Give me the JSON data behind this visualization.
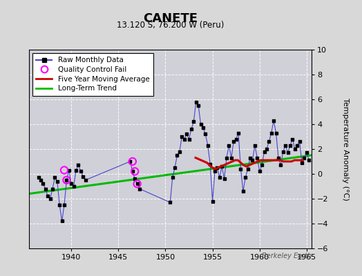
{
  "title": "CANETE",
  "subtitle": "13.120 S, 76.200 W (Peru)",
  "ylabel": "Temperature Anomaly (°C)",
  "watermark": "Berkeley Earth",
  "xlim": [
    1935.5,
    1965.5
  ],
  "ylim": [
    -6,
    10
  ],
  "yticks": [
    -6,
    -4,
    -2,
    0,
    2,
    4,
    6,
    8,
    10
  ],
  "xticks": [
    1940,
    1945,
    1950,
    1955,
    1960,
    1965
  ],
  "background_color": "#d8d8d8",
  "plot_bg_color": "#d0d0d8",
  "grid_color": "#ffffff",
  "raw_color": "#4444cc",
  "qc_color": "#ff00ff",
  "moving_avg_color": "#cc0000",
  "trend_color": "#00bb00",
  "raw_x": [
    1936.5,
    1936.75,
    1937.0,
    1937.25,
    1937.5,
    1937.75,
    1938.0,
    1938.25,
    1938.5,
    1938.75,
    1939.0,
    1939.25,
    1939.5,
    1939.75,
    1940.0,
    1940.25,
    1940.5,
    1940.75,
    1941.0,
    1941.25,
    1941.5,
    1946.25,
    1946.5,
    1946.75,
    1947.0,
    1947.25,
    1950.5,
    1950.75,
    1951.0,
    1951.25,
    1951.5,
    1951.75,
    1952.0,
    1952.25,
    1952.5,
    1952.75,
    1953.0,
    1953.25,
    1953.5,
    1953.75,
    1954.0,
    1954.25,
    1954.5,
    1954.75,
    1955.0,
    1955.25,
    1955.5,
    1955.75,
    1956.0,
    1956.25,
    1956.5,
    1956.75,
    1957.0,
    1957.25,
    1957.5,
    1957.75,
    1958.0,
    1958.25,
    1958.5,
    1958.75,
    1959.0,
    1959.25,
    1959.5,
    1959.75,
    1960.0,
    1960.25,
    1960.5,
    1960.75,
    1961.0,
    1961.25,
    1961.5,
    1961.75,
    1962.0,
    1962.25,
    1962.5,
    1962.75,
    1963.0,
    1963.25,
    1963.5,
    1963.75,
    1964.0,
    1964.25,
    1964.5,
    1964.75,
    1965.0,
    1965.25
  ],
  "raw_y": [
    -0.3,
    -0.5,
    -0.8,
    -1.2,
    -1.8,
    -2.0,
    -1.2,
    -0.3,
    -0.6,
    -2.5,
    -3.8,
    -2.5,
    -0.5,
    0.3,
    -0.8,
    -1.0,
    0.3,
    0.7,
    0.2,
    -0.2,
    -0.5,
    1.0,
    0.2,
    -0.4,
    -0.8,
    -1.2,
    -2.3,
    -0.3,
    0.5,
    1.5,
    1.8,
    3.0,
    2.8,
    3.2,
    2.8,
    3.6,
    4.2,
    5.8,
    5.5,
    4.0,
    3.7,
    3.2,
    2.3,
    0.8,
    -2.2,
    0.2,
    0.5,
    -0.3,
    0.6,
    -0.4,
    1.3,
    2.3,
    1.3,
    2.6,
    2.8,
    3.3,
    0.4,
    -1.4,
    -0.3,
    0.4,
    1.3,
    1.1,
    2.3,
    1.3,
    0.2,
    0.7,
    1.8,
    2.0,
    2.6,
    3.3,
    4.3,
    3.3,
    1.3,
    0.7,
    1.8,
    2.3,
    1.7,
    2.3,
    2.8,
    2.0,
    2.3,
    2.6,
    0.9,
    1.3,
    1.7,
    1.1
  ],
  "qc_x": [
    1939.25,
    1939.5,
    1946.5,
    1946.75,
    1947.0
  ],
  "qc_y": [
    0.3,
    -0.5,
    1.0,
    0.2,
    -0.8
  ],
  "moving_avg_x": [
    1953.2,
    1953.5,
    1953.8,
    1954.1,
    1954.4,
    1954.7,
    1955.0,
    1955.3,
    1955.6,
    1955.9,
    1956.2,
    1956.5,
    1956.8,
    1957.1,
    1957.4,
    1957.7,
    1958.0,
    1958.3,
    1958.6,
    1958.9,
    1959.2,
    1959.5,
    1959.8,
    1960.1,
    1960.4,
    1960.7,
    1961.0,
    1961.3,
    1961.6,
    1961.9,
    1962.2,
    1962.5,
    1962.8,
    1963.1,
    1963.4,
    1963.7,
    1964.0,
    1964.3,
    1964.6
  ],
  "moving_avg_y": [
    1.3,
    1.2,
    1.1,
    1.0,
    0.9,
    0.7,
    0.5,
    0.4,
    0.5,
    0.6,
    0.7,
    0.8,
    0.9,
    1.0,
    1.1,
    1.1,
    0.9,
    0.7,
    0.6,
    0.7,
    0.8,
    0.9,
    1.0,
    1.1,
    1.1,
    1.1,
    1.1,
    1.1,
    1.1,
    1.1,
    1.1,
    1.0,
    1.0,
    1.0,
    1.0,
    1.1,
    1.1,
    1.1,
    1.1
  ],
  "trend_x": [
    1935.5,
    1965.5
  ],
  "trend_y": [
    -1.6,
    1.5
  ],
  "legend_labels": [
    "Raw Monthly Data",
    "Quality Control Fail",
    "Five Year Moving Average",
    "Long-Term Trend"
  ]
}
